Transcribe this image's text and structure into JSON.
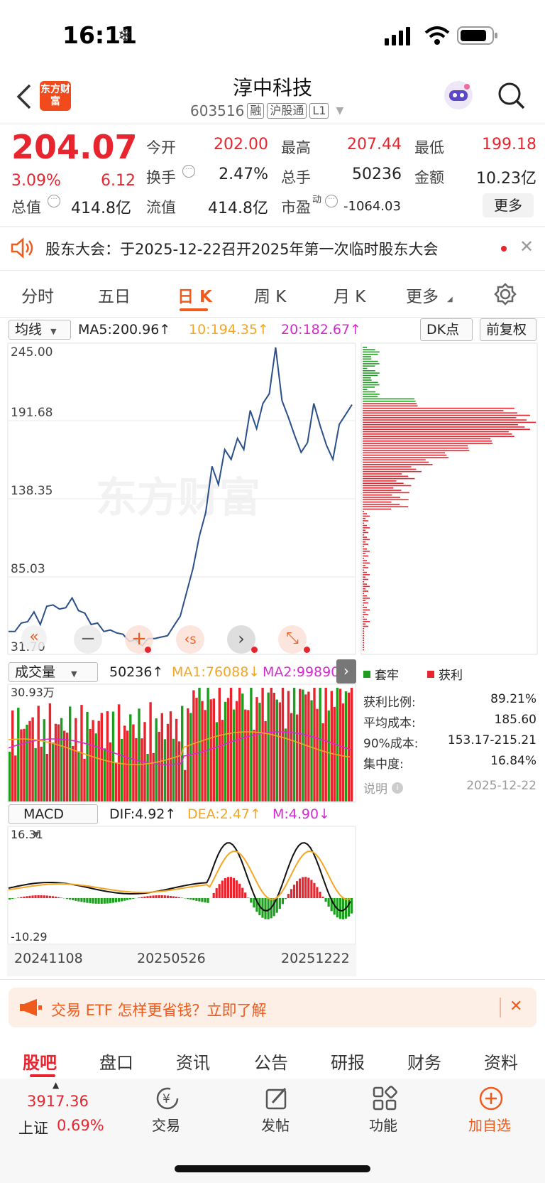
{
  "status": {
    "time": "16:11"
  },
  "header": {
    "title": "淳中科技",
    "code": "603516",
    "tags": [
      "融",
      "沪股通",
      "L1"
    ],
    "logo_text": "东方财富"
  },
  "quote": {
    "price": "204.07",
    "pct": "3.09%",
    "chg": "6.12",
    "open_label": "今开",
    "open": "202.00",
    "high_label": "最高",
    "high": "207.44",
    "low_label": "最低",
    "low": "199.18",
    "turnover_label": "换手",
    "turnover": "2.47%",
    "volume_label": "总手",
    "volume": "50236",
    "amount_label": "金额",
    "amount": "10.23亿",
    "mcap_label": "总值",
    "mcap": "414.8亿",
    "float_label": "流值",
    "float": "414.8亿",
    "pe_label": "市盈",
    "pe_sup": "动",
    "pe": "-1064.03",
    "more": "更多"
  },
  "notice": {
    "text": "股东大会：于2025-12-22召开2025年第一次临时股东大会"
  },
  "tabs": [
    "分时",
    "五日",
    "日 K",
    "周 K",
    "月 K",
    "更多"
  ],
  "indicators": {
    "ma_select": "均线",
    "ma5": "MA5:200.96↑",
    "ma10": "10:194.35↑",
    "ma20": "20:182.67↑",
    "dk": "DK点",
    "adjust": "前复权",
    "vol_select": "成交量",
    "vol_val": "50236↑",
    "ma1": "MA1:76088↓",
    "ma2": "MA2:99890",
    "macd_select": "MACD",
    "dif": "DIF:4.92↑",
    "dea": "DEA:2.47↑",
    "m": "M:4.90↓"
  },
  "price_axis": [
    "245.00",
    "191.68",
    "138.35",
    "85.03",
    "31.70"
  ],
  "vol_axis_top": "30.93万",
  "macd_axis": [
    "16.31",
    "-10.29"
  ],
  "dates": [
    "20241108",
    "20250526",
    "20251222"
  ],
  "watermark": "东方财富",
  "chip": {
    "legend_trap": "套牢",
    "legend_profit": "获利",
    "rows": [
      {
        "label": "获利比例:",
        "value": "89.21%"
      },
      {
        "label": "平均成本:",
        "value": "185.60"
      },
      {
        "label": "90%成本:",
        "value": "153.17-215.21"
      },
      {
        "label": "集中度:",
        "value": "16.84%"
      }
    ],
    "note_label": "说明",
    "date": "2025-12-22"
  },
  "banner": {
    "text": "交易 ETF 怎样更省钱？立即了解"
  },
  "bottom_tabs": [
    "股吧",
    "盘口",
    "资讯",
    "公告",
    "研报",
    "财务",
    "资料"
  ],
  "footer": {
    "index_val": "3917.36",
    "index_name": "上证",
    "index_pct": "0.69%",
    "trade": "交易",
    "post": "发帖",
    "func": "功能",
    "add": "加自选"
  },
  "colors": {
    "up": "#e8252e",
    "down": "#1e9e1e",
    "accent": "#ef5b1c",
    "line": "#2b4f8a",
    "ma_orange": "#f5a623",
    "ma_pink": "#d42bd0"
  },
  "chart_data": {
    "type": "line",
    "x_labels": [
      "20241108",
      "20250526",
      "20251222"
    ],
    "y_range": [
      31.7,
      245.0
    ],
    "close_series": [
      42,
      45,
      48,
      52,
      56,
      50,
      60,
      64,
      58,
      62,
      66,
      60,
      55,
      50,
      48,
      45,
      43,
      44,
      40,
      38,
      36,
      35,
      37,
      40,
      38,
      42,
      46,
      56,
      70,
      90,
      110,
      130,
      160,
      150,
      172,
      168,
      180,
      175,
      200,
      190,
      205,
      215,
      245,
      210,
      195,
      185,
      170,
      180,
      205,
      192,
      175,
      168,
      190,
      200,
      204.07
    ]
  }
}
